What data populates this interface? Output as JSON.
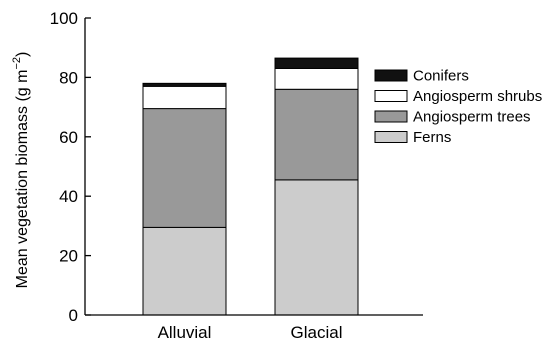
{
  "chart_data": {
    "type": "bar",
    "stacked": true,
    "categories": [
      "Alluvial",
      "Glacial"
    ],
    "series": [
      {
        "name": "Ferns",
        "values": [
          29.5,
          45.5
        ],
        "color": "#cccccc"
      },
      {
        "name": "Angiosperm trees",
        "values": [
          40.0,
          30.5
        ],
        "color": "#999999"
      },
      {
        "name": "Angiosperm shrubs",
        "values": [
          7.5,
          7.0
        ],
        "color": "#ffffff"
      },
      {
        "name": "Conifers",
        "values": [
          1.0,
          3.5
        ],
        "color": "#111111"
      }
    ],
    "ylabel_main": "Mean vegetation biomass (g m",
    "ylabel_sup": "−2",
    "ylabel_close": ")",
    "ylim": [
      0,
      100
    ],
    "yticks": [
      "0",
      "20",
      "40",
      "60",
      "80",
      "100"
    ],
    "legend_order": [
      "Conifers",
      "Angiosperm shrubs",
      "Angiosperm trees",
      "Ferns"
    ],
    "legend_position": "right",
    "grid": false
  }
}
